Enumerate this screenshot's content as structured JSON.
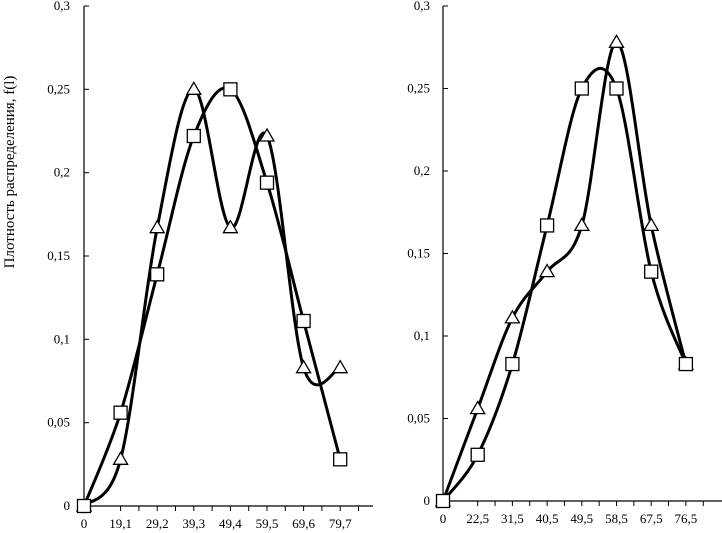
{
  "chart_data": [
    {
      "type": "line",
      "title": "",
      "xlabel": "",
      "ylabel": "Плотность распределения, f(l)",
      "x": [
        0,
        19.1,
        29.2,
        39.3,
        49.4,
        59.5,
        69.6,
        79.7
      ],
      "x_tick_labels": [
        "0",
        "19,1",
        "29,2",
        "39,3",
        "49,4",
        "59,5",
        "69,6",
        "79,7"
      ],
      "y_ticks": [
        0,
        0.05,
        0.1,
        0.15,
        0.2,
        0.25,
        0.3
      ],
      "y_tick_labels": [
        "0",
        "0,05",
        "0,1",
        "0,15",
        "0,2",
        "0,25",
        "0,3"
      ],
      "ylim": [
        0,
        0.3
      ],
      "grid": false,
      "series": [
        {
          "marker": "triangle",
          "values": [
            0,
            0.028,
            0.167,
            0.25,
            0.167,
            0.222,
            0.083,
            0.083
          ]
        },
        {
          "marker": "square",
          "values": [
            0,
            0.056,
            0.139,
            0.222,
            0.25,
            0.194,
            0.111,
            0.028
          ]
        }
      ]
    },
    {
      "type": "line",
      "title": "",
      "xlabel": "",
      "ylabel": "",
      "x": [
        0,
        22.5,
        31.5,
        40.5,
        49.5,
        58.5,
        67.5,
        76.5
      ],
      "x_tick_labels": [
        "0",
        "22,5",
        "31,5",
        "40,5",
        "49,5",
        "58,5",
        "67,5",
        "76,5"
      ],
      "y_ticks": [
        0,
        0.05,
        0.1,
        0.15,
        0.2,
        0.25,
        0.3
      ],
      "y_tick_labels": [
        "0",
        "0,05",
        "0,1",
        "0,15",
        "0,2",
        "0,25",
        "0,3"
      ],
      "ylim": [
        0,
        0.3
      ],
      "grid": false,
      "series": [
        {
          "marker": "triangle",
          "values": [
            0,
            0.056,
            0.111,
            0.139,
            0.167,
            0.278,
            0.167,
            0.083
          ]
        },
        {
          "marker": "square",
          "values": [
            0,
            0.028,
            0.083,
            0.167,
            0.25,
            0.25,
            0.139,
            0.083
          ]
        }
      ]
    }
  ]
}
